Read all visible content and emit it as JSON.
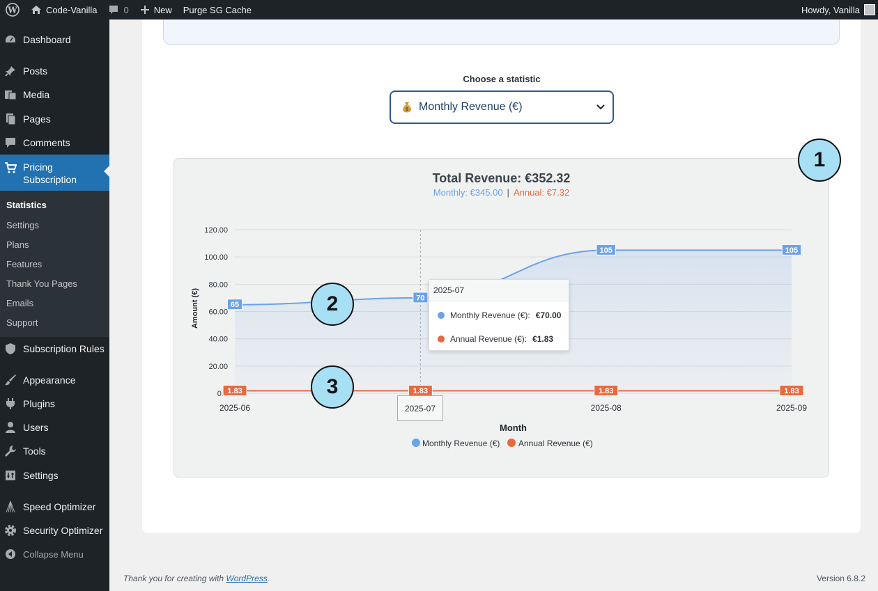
{
  "adminbar": {
    "site_name": "Code-Vanilla",
    "comments_count": "0",
    "new_label": "New",
    "purge_label": "Purge SG Cache",
    "howdy": "Howdy, Vanilla"
  },
  "sidebar": {
    "items": [
      {
        "label": "Dashboard",
        "icon": "dashboard-icon"
      },
      {
        "label": "Posts",
        "icon": "pin-icon"
      },
      {
        "label": "Media",
        "icon": "media-icon"
      },
      {
        "label": "Pages",
        "icon": "pages-icon"
      },
      {
        "label": "Comments",
        "icon": "comment-icon"
      },
      {
        "label": "Pricing Subscription",
        "line1": "Pricing",
        "line2": "Subscription",
        "icon": "cart-icon"
      },
      {
        "label": "Subscription Rules",
        "icon": "shield-icon"
      },
      {
        "label": "Appearance",
        "icon": "brush-icon"
      },
      {
        "label": "Plugins",
        "icon": "plugin-icon"
      },
      {
        "label": "Users",
        "icon": "user-icon"
      },
      {
        "label": "Tools",
        "icon": "wrench-icon"
      },
      {
        "label": "Settings",
        "icon": "settings-icon"
      },
      {
        "label": "Speed Optimizer",
        "icon": "speed-icon"
      },
      {
        "label": "Security Optimizer",
        "icon": "gear-icon"
      },
      {
        "label": "Collapse Menu",
        "icon": "collapse-icon"
      }
    ],
    "submenu": [
      "Statistics",
      "Settings",
      "Plans",
      "Features",
      "Thank You Pages",
      "Emails",
      "Support"
    ]
  },
  "stats": {
    "select_label": "Choose a statistic",
    "selected": "Monthly Revenue (€)",
    "selected_icon": "money-bag-icon"
  },
  "chart_data": {
    "type": "line",
    "title": "Total Revenue: €352.32",
    "subtitle_monthly": "Monthly: €345.00",
    "subtitle_separator": "|",
    "subtitle_annual": "Annual: €7.32",
    "xlabel": "Month",
    "ylabel": "Amount (€)",
    "x": [
      "2025-06",
      "2025-07",
      "2025-08",
      "2025-09"
    ],
    "y_ticks": [
      "0.0",
      "20.00",
      "40.00",
      "60.00",
      "80.00",
      "100.00",
      "120.00"
    ],
    "ylim": [
      0,
      120
    ],
    "grid": true,
    "legend": "bottom",
    "series": [
      {
        "name": "Monthly Revenue (€)",
        "values": [
          65,
          70,
          105,
          105
        ],
        "labels": [
          "65",
          "70",
          "105",
          "105"
        ],
        "color": "#6ba2ec",
        "fill": true
      },
      {
        "name": "Annual Revenue (€)",
        "values": [
          1.83,
          1.83,
          1.83,
          1.83
        ],
        "labels": [
          "1.83",
          "1.83",
          "1.83",
          "1.83"
        ],
        "color": "#e8693d",
        "fill": false
      }
    ],
    "tooltip": {
      "title": "2025-07",
      "rows": [
        {
          "label": "Monthly Revenue (€):",
          "value": "€70.00",
          "color": "#6ba2ec"
        },
        {
          "label": "Annual Revenue (€):",
          "value": "€1.83",
          "color": "#e8693d"
        }
      ]
    },
    "hover_x": "2025-07"
  },
  "annotations": [
    "1",
    "2",
    "3"
  ],
  "footer": {
    "thanks_prefix": "Thank you for creating with ",
    "wp_link": "WordPress",
    "thanks_suffix": ".",
    "version": "Version 6.8.2"
  }
}
